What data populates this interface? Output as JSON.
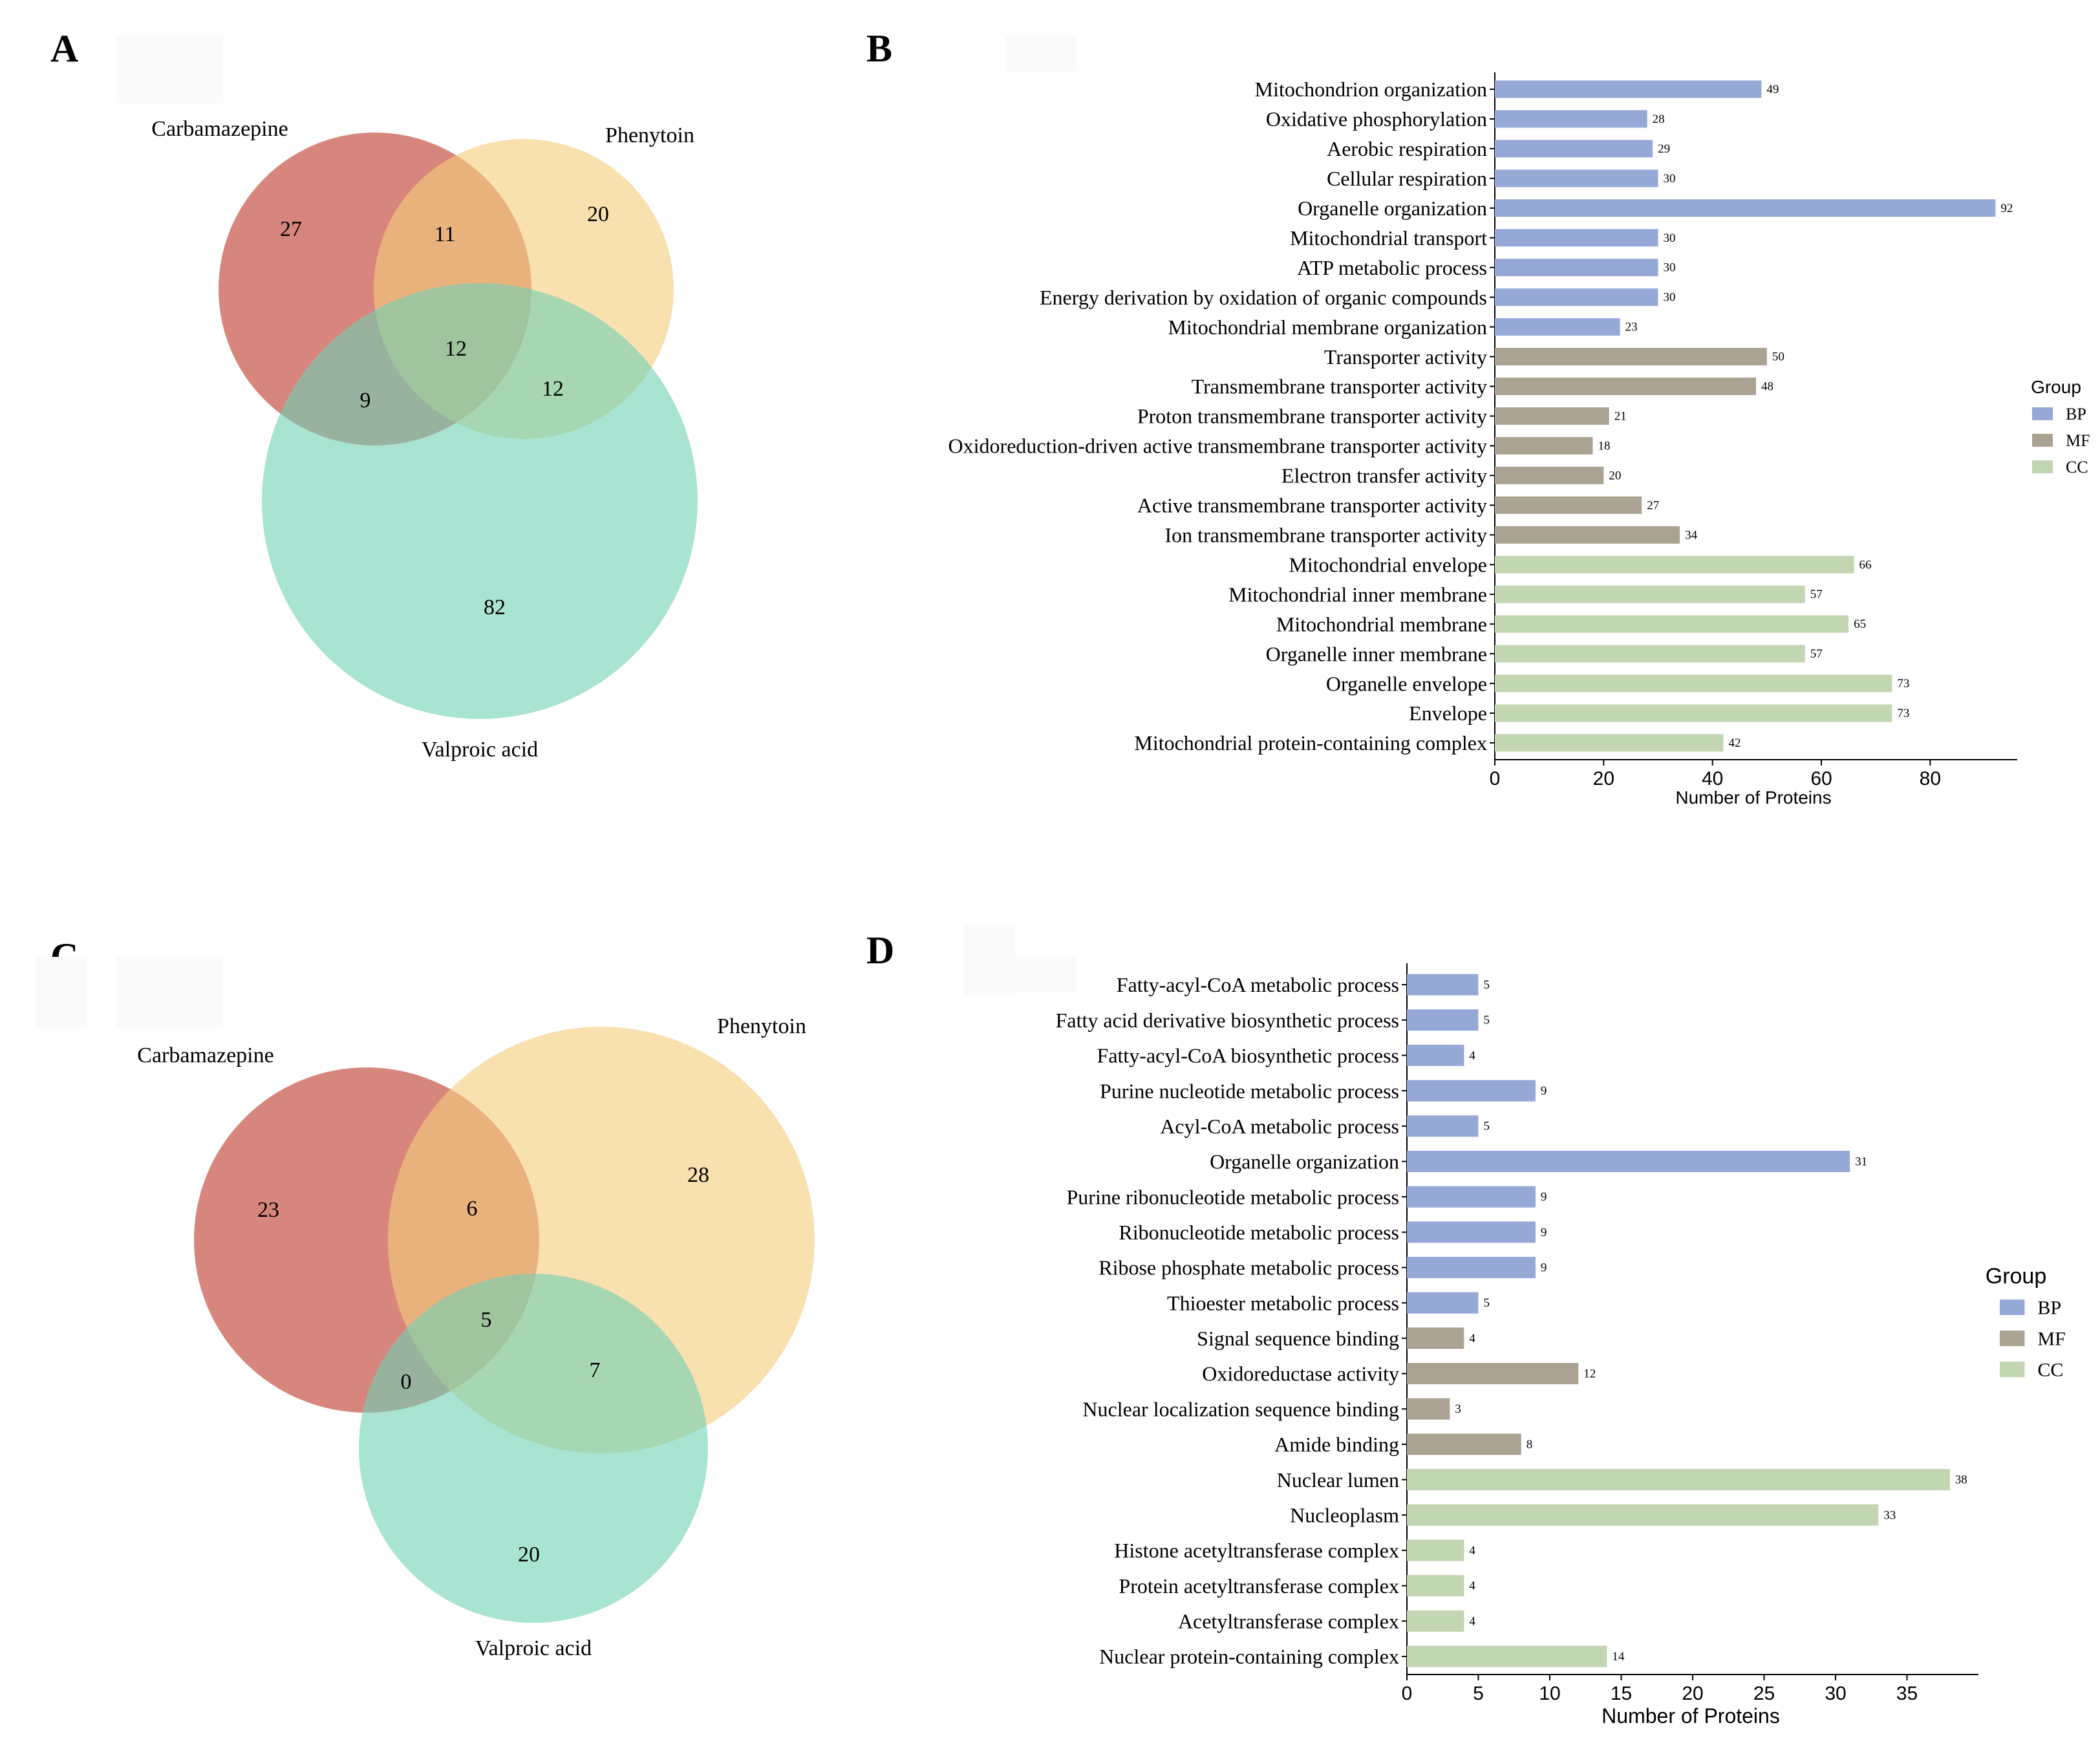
{
  "panel_labels": {
    "a": "A",
    "b": "B",
    "c": "C",
    "d": "D"
  },
  "colors": {
    "carbamazepine": "#c8584b",
    "phenytoin": "#f3cd7e",
    "valproic": "#6fd1b4",
    "bp": "#95a8d6",
    "mf": "#aaa391",
    "cc": "#c2d6b1"
  },
  "chart_data": [
    {
      "type": "venn",
      "panel": "A",
      "sets": [
        {
          "name": "Carbamazepine",
          "only": "27"
        },
        {
          "name": "Phenytoin",
          "only": "20"
        },
        {
          "name": "Valproic acid",
          "only": "82"
        }
      ],
      "intersections": {
        "carbamazepine_phenytoin": "11",
        "carbamazepine_valproic": "9",
        "phenytoin_valproic": "12",
        "all": "12"
      }
    },
    {
      "type": "bar",
      "panel": "B",
      "orientation": "horizontal",
      "xlabel": "Number of Proteins",
      "xlim": [
        0,
        96
      ],
      "xticks": [
        0,
        20,
        40,
        60,
        80
      ],
      "legend_title": "Group",
      "legend": [
        "BP",
        "MF",
        "CC"
      ],
      "legend_position": "right",
      "categories": [
        "Mitochondrion organization",
        "Oxidative phosphorylation",
        "Aerobic respiration",
        "Cellular respiration",
        "Organelle organization",
        "Mitochondrial transport",
        "ATP metabolic process",
        "Energy derivation by oxidation of organic compounds",
        "Mitochondrial membrane organization",
        "Transporter activity",
        "Transmembrane transporter activity",
        "Proton transmembrane transporter activity",
        "Oxidoreduction-driven active transmembrane transporter activity",
        "Electron transfer activity",
        "Active transmembrane transporter activity",
        "Ion transmembrane transporter activity",
        "Mitochondrial envelope",
        "Mitochondrial inner membrane",
        "Mitochondrial membrane",
        "Organelle inner membrane",
        "Organelle envelope",
        "Envelope",
        "Mitochondrial protein-containing complex"
      ],
      "values": [
        49,
        28,
        29,
        30,
        92,
        30,
        30,
        30,
        23,
        50,
        48,
        21,
        18,
        20,
        27,
        34,
        66,
        57,
        65,
        57,
        73,
        73,
        42
      ],
      "groups": [
        "BP",
        "BP",
        "BP",
        "BP",
        "BP",
        "BP",
        "BP",
        "BP",
        "BP",
        "MF",
        "MF",
        "MF",
        "MF",
        "MF",
        "MF",
        "MF",
        "CC",
        "CC",
        "CC",
        "CC",
        "CC",
        "CC",
        "CC"
      ]
    },
    {
      "type": "venn",
      "panel": "C",
      "sets": [
        {
          "name": "Carbamazepine",
          "only": "23"
        },
        {
          "name": "Phenytoin",
          "only": "28"
        },
        {
          "name": "Valproic acid",
          "only": "20"
        }
      ],
      "intersections": {
        "carbamazepine_phenytoin": "6",
        "carbamazepine_valproic": "0",
        "phenytoin_valproic": "7",
        "all": "5"
      }
    },
    {
      "type": "bar",
      "panel": "D",
      "orientation": "horizontal",
      "xlabel": "Number of Proteins",
      "xlim": [
        0,
        40
      ],
      "xticks": [
        0,
        5,
        10,
        15,
        20,
        25,
        30,
        35
      ],
      "legend_title": "Group",
      "legend": [
        "BP",
        "MF",
        "CC"
      ],
      "legend_position": "right",
      "categories": [
        "Fatty-acyl-CoA metabolic process",
        "Fatty acid derivative biosynthetic process",
        "Fatty-acyl-CoA biosynthetic process",
        "Purine nucleotide metabolic process",
        "Acyl-CoA metabolic process",
        "Organelle organization",
        "Purine ribonucleotide metabolic process",
        "Ribonucleotide metabolic process",
        "Ribose phosphate metabolic process",
        "Thioester metabolic process",
        "Signal sequence binding",
        "Oxidoreductase activity",
        "Nuclear localization sequence binding",
        "Amide binding",
        "Nuclear lumen",
        "Nucleoplasm",
        "Histone acetyltransferase complex",
        "Protein acetyltransferase complex",
        "Acetyltransferase complex",
        "Nuclear protein-containing complex"
      ],
      "values": [
        5,
        5,
        4,
        9,
        5,
        31,
        9,
        9,
        9,
        5,
        4,
        12,
        3,
        8,
        38,
        33,
        4,
        4,
        4,
        14
      ],
      "groups": [
        "BP",
        "BP",
        "BP",
        "BP",
        "BP",
        "BP",
        "BP",
        "BP",
        "BP",
        "BP",
        "MF",
        "MF",
        "MF",
        "MF",
        "CC",
        "CC",
        "CC",
        "CC",
        "CC",
        "CC"
      ]
    }
  ]
}
